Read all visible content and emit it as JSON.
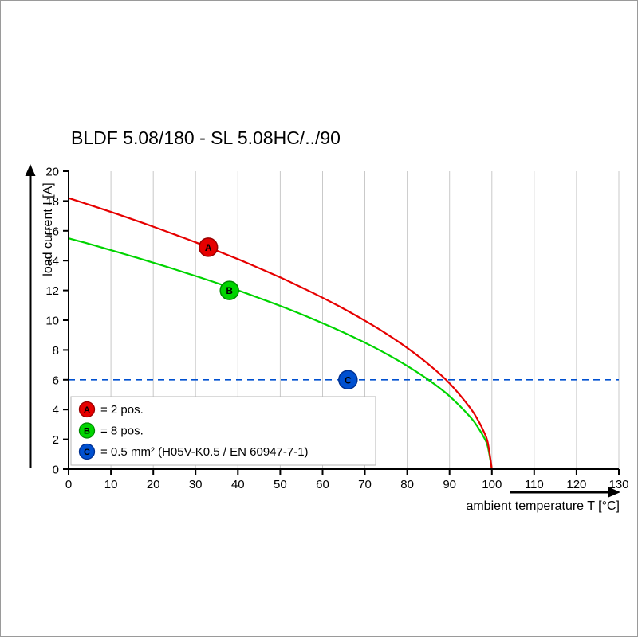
{
  "title": "BLDF 5.08/180 - SL 5.08HC/../90",
  "chart_data": {
    "type": "line",
    "title": "BLDF 5.08/180 - SL 5.08HC/../90",
    "xlabel": "ambient temperature T [°C]",
    "ylabel": "load current I [A]",
    "xlim": [
      0,
      130
    ],
    "ylim": [
      0,
      20
    ],
    "x_ticks": [
      0,
      10,
      20,
      30,
      40,
      50,
      60,
      70,
      80,
      90,
      100,
      110,
      120,
      130
    ],
    "y_ticks": [
      0,
      2,
      4,
      6,
      8,
      10,
      12,
      14,
      16,
      18,
      20
    ],
    "grid": "vertical",
    "grid_color": "#c9c9c9",
    "axis_color": "#000000",
    "series": [
      {
        "name": "C",
        "legend": "= 0.5 mm² (H05V-K0.5 / EN 60947-7-1)",
        "color": "#0050d0",
        "ring": "#003090",
        "dashed": true,
        "points": [
          [
            0,
            6
          ],
          [
            130,
            6
          ]
        ],
        "marker": {
          "x": 66,
          "y": 6
        }
      },
      {
        "name": "B",
        "legend": "= 8 pos.",
        "color": "#00d400",
        "ring": "#008800",
        "dashed": false,
        "points": [
          [
            0,
            15.5
          ],
          [
            5,
            15.11
          ],
          [
            10,
            14.7
          ],
          [
            15,
            14.29
          ],
          [
            20,
            13.86
          ],
          [
            25,
            13.42
          ],
          [
            30,
            12.97
          ],
          [
            35,
            12.5
          ],
          [
            40,
            12.01
          ],
          [
            45,
            11.49
          ],
          [
            50,
            10.96
          ],
          [
            55,
            10.4
          ],
          [
            60,
            9.8
          ],
          [
            65,
            9.17
          ],
          [
            70,
            8.49
          ],
          [
            75,
            7.75
          ],
          [
            80,
            6.93
          ],
          [
            85,
            6.0
          ],
          [
            90,
            4.9
          ],
          [
            95,
            3.47
          ],
          [
            97,
            2.68
          ],
          [
            98,
            2.19
          ],
          [
            99,
            1.55
          ],
          [
            100,
            0
          ]
        ],
        "marker": {
          "x": 38,
          "y": 12.0
        }
      },
      {
        "name": "A",
        "legend": "= 2 pos.",
        "color": "#e60000",
        "ring": "#990000",
        "dashed": false,
        "points": [
          [
            0,
            18.2
          ],
          [
            5,
            17.74
          ],
          [
            10,
            17.27
          ],
          [
            15,
            16.78
          ],
          [
            20,
            16.28
          ],
          [
            25,
            15.76
          ],
          [
            30,
            15.23
          ],
          [
            35,
            14.67
          ],
          [
            40,
            14.1
          ],
          [
            45,
            13.5
          ],
          [
            50,
            12.87
          ],
          [
            55,
            12.21
          ],
          [
            60,
            11.51
          ],
          [
            65,
            10.77
          ],
          [
            70,
            9.97
          ],
          [
            75,
            9.1
          ],
          [
            80,
            8.14
          ],
          [
            85,
            7.05
          ],
          [
            90,
            5.76
          ],
          [
            95,
            4.07
          ],
          [
            97,
            3.15
          ],
          [
            98,
            2.57
          ],
          [
            99,
            1.82
          ],
          [
            100,
            0
          ]
        ],
        "marker": {
          "x": 33,
          "y": 14.9
        }
      }
    ],
    "legend_order": [
      "A",
      "B",
      "C"
    ],
    "legend_position": "bottom-left-inside"
  }
}
